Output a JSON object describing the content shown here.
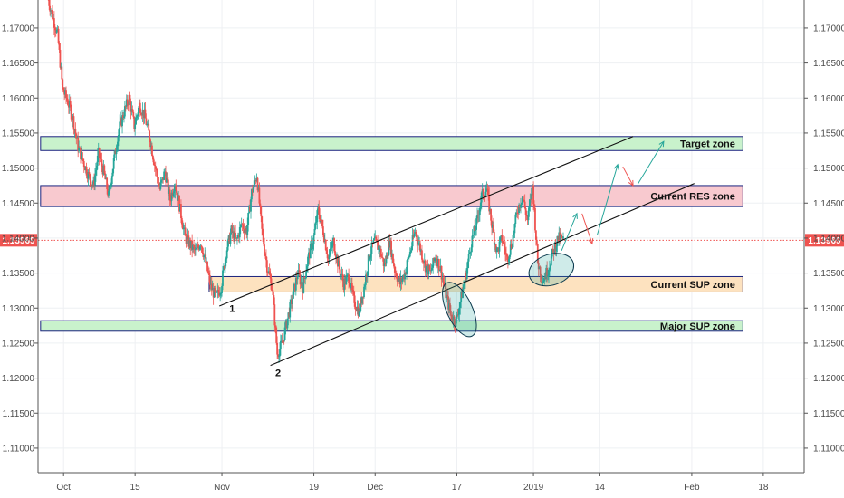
{
  "chart_data": {
    "type": "candlestick",
    "y_axis": {
      "range": [
        1.1065,
        1.174
      ],
      "ticks": [
        "1.17000",
        "1.16500",
        "1.16000",
        "1.15500",
        "1.15000",
        "1.14500",
        "1.14000",
        "1.13500",
        "1.13000",
        "1.12500",
        "1.12000",
        "1.11500",
        "1.11000"
      ]
    },
    "x_axis": {
      "labels": [
        {
          "text": "Oct",
          "day": 0
        },
        {
          "text": "15",
          "day": 14
        },
        {
          "text": "Nov",
          "day": 31
        },
        {
          "text": "19",
          "day": 49
        },
        {
          "text": "Dec",
          "day": 61
        },
        {
          "text": "17",
          "day": 77
        },
        {
          "text": "2019",
          "day": 92
        },
        {
          "text": "14",
          "day": 105
        },
        {
          "text": "Feb",
          "day": 123
        },
        {
          "text": "18",
          "day": 137
        }
      ],
      "range_days": [
        -5,
        145
      ]
    },
    "current_price": "1.13969",
    "current_price_value": 1.13969,
    "zones": [
      {
        "label": "Target zone",
        "low": 1.1525,
        "high": 1.1545,
        "fill": "#c9f2cc",
        "stroke": "#1a237e"
      },
      {
        "label": "Current RES zone",
        "low": 1.1445,
        "high": 1.1475,
        "fill": "#f8c9cf",
        "stroke": "#1a237e"
      },
      {
        "label": "Current SUP zone",
        "low": 1.1323,
        "high": 1.1345,
        "fill": "#fde2bf",
        "stroke": "#1a237e"
      },
      {
        "label": "Major SUP zone",
        "low": 1.1267,
        "high": 1.1282,
        "fill": "#c9f2cc",
        "stroke": "#1a237e"
      }
    ],
    "trend_lines": [
      {
        "from": [
          40.5,
          1.1218
        ],
        "to": [
          123.5,
          1.1478
        ]
      },
      {
        "from": [
          30.5,
          1.1303
        ],
        "to": [
          111.5,
          1.1545
        ]
      }
    ],
    "pivot_labels": [
      {
        "text": "1",
        "day": 33,
        "price": 1.13
      },
      {
        "text": "2",
        "day": 42,
        "price": 1.1208
      }
    ],
    "ellipses": [
      {
        "day": 77.5,
        "price": 1.1298,
        "rx": 2.5,
        "ry": 0.0042
      },
      {
        "day": 95.5,
        "price": 1.1355,
        "rx": 4.5,
        "ry": 0.0022
      }
    ],
    "arrows": [
      {
        "from": [
          97.5,
          1.1382
        ],
        "to": [
          100.5,
          1.1435
        ],
        "color": "#26a69a"
      },
      {
        "from": [
          101.5,
          1.1435
        ],
        "to": [
          103.5,
          1.1392
        ],
        "color": "#ef5350"
      },
      {
        "from": [
          104.5,
          1.1405
        ],
        "to": [
          108.5,
          1.1505
        ],
        "color": "#26a69a"
      },
      {
        "from": [
          109.5,
          1.1502
        ],
        "to": [
          111.5,
          1.1475
        ],
        "color": "#ef5350"
      },
      {
        "from": [
          112.5,
          1.1478
        ],
        "to": [
          117.5,
          1.1538
        ],
        "color": "#26a69a"
      }
    ],
    "price_path": [
      [
        -3,
        1.1745
      ],
      [
        -1,
        1.169
      ],
      [
        0,
        1.1612
      ],
      [
        1,
        1.1595
      ],
      [
        2,
        1.157
      ],
      [
        3,
        1.153
      ],
      [
        4,
        1.151
      ],
      [
        5,
        1.149
      ],
      [
        6,
        1.1475
      ],
      [
        7,
        1.152
      ],
      [
        8,
        1.1495
      ],
      [
        9,
        1.146
      ],
      [
        10,
        1.151
      ],
      [
        11,
        1.1555
      ],
      [
        12,
        1.158
      ],
      [
        13,
        1.16
      ],
      [
        14,
        1.156
      ],
      [
        15,
        1.159
      ],
      [
        16,
        1.1575
      ],
      [
        17,
        1.1545
      ],
      [
        18,
        1.1505
      ],
      [
        19,
        1.147
      ],
      [
        20,
        1.1495
      ],
      [
        21,
        1.1455
      ],
      [
        22,
        1.148
      ],
      [
        23,
        1.144
      ],
      [
        24,
        1.14
      ],
      [
        25,
        1.139
      ],
      [
        26,
        1.138
      ],
      [
        27,
        1.1395
      ],
      [
        28,
        1.1365
      ],
      [
        29,
        1.133
      ],
      [
        30,
        1.1315
      ],
      [
        31,
        1.133
      ],
      [
        32,
        1.138
      ],
      [
        33,
        1.141
      ],
      [
        34,
        1.1395
      ],
      [
        35,
        1.142
      ],
      [
        36,
        1.141
      ],
      [
        37,
        1.1465
      ],
      [
        38,
        1.149
      ],
      [
        39,
        1.141
      ],
      [
        40,
        1.136
      ],
      [
        41,
        1.133
      ],
      [
        42,
        1.1235
      ],
      [
        43,
        1.125
      ],
      [
        44,
        1.1285
      ],
      [
        45,
        1.1315
      ],
      [
        46,
        1.135
      ],
      [
        47,
        1.133
      ],
      [
        48,
        1.137
      ],
      [
        49,
        1.1395
      ],
      [
        50,
        1.144
      ],
      [
        51,
        1.141
      ],
      [
        52,
        1.137
      ],
      [
        53,
        1.1395
      ],
      [
        54,
        1.136
      ],
      [
        55,
        1.1335
      ],
      [
        56,
        1.1345
      ],
      [
        57,
        1.131
      ],
      [
        58,
        1.1295
      ],
      [
        59,
        1.133
      ],
      [
        60,
        1.1375
      ],
      [
        61,
        1.1395
      ],
      [
        62,
        1.1385
      ],
      [
        63,
        1.136
      ],
      [
        64,
        1.1395
      ],
      [
        65,
        1.1355
      ],
      [
        66,
        1.1335
      ],
      [
        67,
        1.135
      ],
      [
        68,
        1.138
      ],
      [
        69,
        1.141
      ],
      [
        70,
        1.1385
      ],
      [
        71,
        1.136
      ],
      [
        72,
        1.135
      ],
      [
        73,
        1.1375
      ],
      [
        74,
        1.1355
      ],
      [
        75,
        1.132
      ],
      [
        76,
        1.129
      ],
      [
        77,
        1.128
      ],
      [
        78,
        1.1315
      ],
      [
        79,
        1.135
      ],
      [
        80,
        1.1395
      ],
      [
        81,
        1.142
      ],
      [
        82,
        1.146
      ],
      [
        83,
        1.147
      ],
      [
        84,
        1.142
      ],
      [
        85,
        1.138
      ],
      [
        86,
        1.14
      ],
      [
        87,
        1.137
      ],
      [
        88,
        1.1395
      ],
      [
        89,
        1.144
      ],
      [
        90,
        1.146
      ],
      [
        91,
        1.1425
      ],
      [
        92,
        1.1475
      ],
      [
        93,
        1.1365
      ],
      [
        94,
        1.134
      ],
      [
        95,
        1.1355
      ],
      [
        96,
        1.138
      ],
      [
        97,
        1.14
      ],
      [
        98,
        1.1397
      ]
    ]
  }
}
